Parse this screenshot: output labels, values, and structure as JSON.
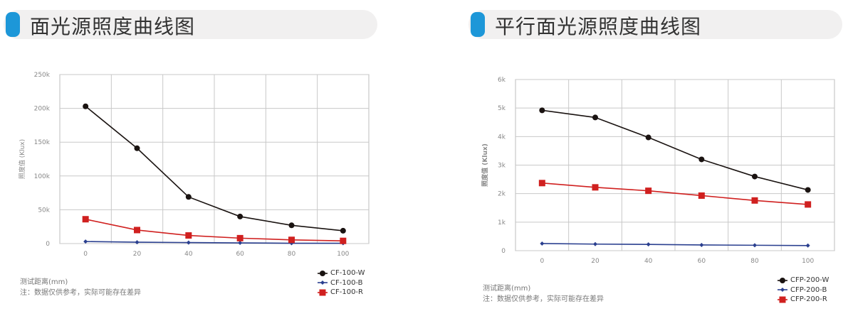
{
  "chart_data": [
    {
      "type": "line",
      "title": "面光源照度曲线图",
      "xlabel": "测试距离(mm)",
      "ylabel": "照度值 (Klux)",
      "note": "注：数据仅供参考，实际可能存在差异",
      "categories": [
        "0",
        "20",
        "40",
        "60",
        "80",
        "100"
      ],
      "yticks": [
        "0",
        "50k",
        "100k",
        "150k",
        "200k",
        "250k"
      ],
      "ylim": [
        0,
        250000
      ],
      "grid": true,
      "legend_position": "bottom-right",
      "series": [
        {
          "name": "CF-100-W",
          "color": "#1a1311",
          "marker": "circle",
          "values": [
            203000,
            141000,
            69000,
            40000,
            27000,
            19000
          ]
        },
        {
          "name": "CF-100-B",
          "color": "#2a3f8f",
          "marker": "diamond",
          "values": [
            3000,
            2000,
            1500,
            1000,
            500,
            500
          ]
        },
        {
          "name": "CF-100-R",
          "color": "#d0201f",
          "marker": "square",
          "values": [
            36000,
            20000,
            12000,
            8000,
            5500,
            4000
          ]
        }
      ]
    },
    {
      "type": "line",
      "title": "平行面光源照度曲线图",
      "xlabel": "测试距离(mm)",
      "ylabel": "照度值 (Klux)",
      "note": "注：数据仅供参考，实际可能存在差异",
      "categories": [
        "0",
        "20",
        "40",
        "60",
        "80",
        "100"
      ],
      "yticks": [
        "0",
        "1k",
        "2k",
        "3k",
        "4k",
        "5k",
        "6k"
      ],
      "ylim": [
        0,
        6000
      ],
      "grid": true,
      "legend_position": "bottom-right",
      "series": [
        {
          "name": "CFP-200-W",
          "color": "#1a1311",
          "marker": "circle",
          "values": [
            4920,
            4670,
            3970,
            3200,
            2600,
            2130
          ]
        },
        {
          "name": "CFP-200-B",
          "color": "#2a3f8f",
          "marker": "diamond",
          "values": [
            250,
            230,
            220,
            200,
            190,
            180
          ]
        },
        {
          "name": "CFP-200-R",
          "color": "#d0201f",
          "marker": "square",
          "values": [
            2370,
            2220,
            2100,
            1930,
            1760,
            1620
          ]
        }
      ]
    }
  ],
  "accent_color": "#1d97d8"
}
